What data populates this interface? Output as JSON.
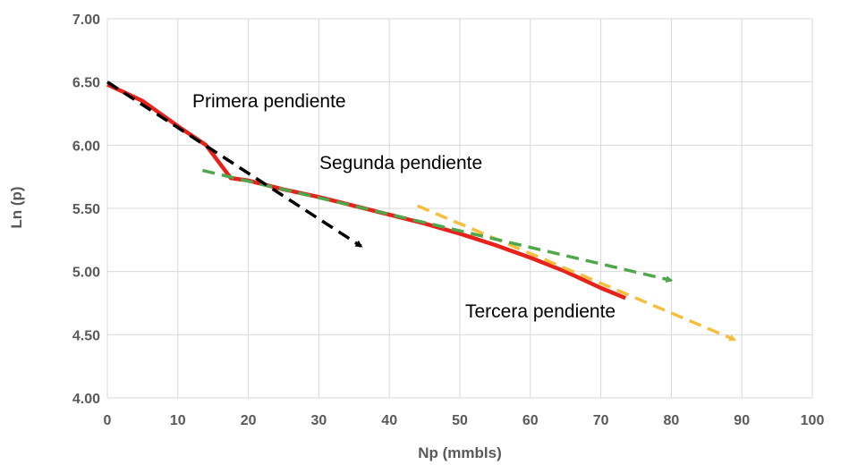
{
  "chart_data": {
    "type": "line",
    "title": "",
    "xlabel": "Np (mmbls)",
    "ylabel": "Ln (p)",
    "xlim": [
      0,
      100
    ],
    "ylim": [
      4.0,
      7.0
    ],
    "x_ticks": [
      "0",
      "10",
      "20",
      "30",
      "40",
      "50",
      "60",
      "70",
      "80",
      "90",
      "100"
    ],
    "y_ticks": [
      "4.00",
      "4.50",
      "5.00",
      "5.50",
      "6.00",
      "6.50",
      "7.00"
    ],
    "grid": true,
    "legend": "none",
    "annotations": [
      "Primera pendiente",
      "Segunda pendiente",
      "Tercera pendiente"
    ],
    "colors": {
      "data": "#e8211b",
      "first": "#000000",
      "second": "#4ea84b",
      "third": "#f6be3c",
      "grid": "#d9d9d9",
      "axis_text": "#595959"
    },
    "series": [
      {
        "style": "solid",
        "x": [
          0,
          5,
          10,
          14,
          17.5,
          20,
          25,
          30,
          35,
          40,
          45,
          50,
          55,
          60,
          65,
          70,
          73.5
        ],
        "y": [
          6.48,
          6.35,
          6.15,
          6.0,
          5.74,
          5.72,
          5.65,
          5.59,
          5.52,
          5.45,
          5.38,
          5.3,
          5.21,
          5.11,
          5.0,
          4.87,
          4.79
        ]
      },
      {
        "style": "dashed-arrow",
        "x": [
          0,
          36
        ],
        "y": [
          6.5,
          5.2
        ]
      },
      {
        "style": "dashed-arrow",
        "x": [
          13.5,
          80
        ],
        "y": [
          5.8,
          4.93
        ]
      },
      {
        "style": "dashed-arrow",
        "x": [
          44,
          89
        ],
        "y": [
          5.52,
          4.46
        ]
      }
    ]
  }
}
